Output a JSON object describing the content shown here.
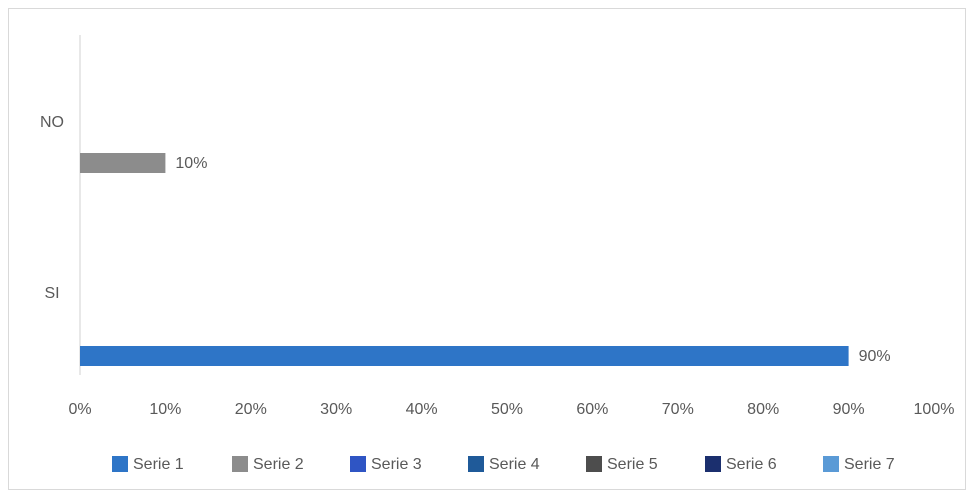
{
  "chart_data": {
    "type": "bar",
    "orientation": "horizontal",
    "title": "",
    "xlabel": "",
    "ylabel": "",
    "categories": [
      "SI",
      "NO"
    ],
    "series": [
      {
        "name": "Serie 1",
        "color": "#2e75c7",
        "values": [
          90,
          null
        ]
      },
      {
        "name": "Serie 2",
        "color": "#8c8c8c",
        "values": [
          null,
          10
        ]
      },
      {
        "name": "Serie 3",
        "color": "#2f55c4",
        "values": [
          null,
          null
        ]
      },
      {
        "name": "Serie 4",
        "color": "#1f5a99",
        "values": [
          null,
          null
        ]
      },
      {
        "name": "Serie 5",
        "color": "#4d4d4d",
        "values": [
          null,
          null
        ]
      },
      {
        "name": "Serie 6",
        "color": "#1b2f6e",
        "values": [
          null,
          null
        ]
      },
      {
        "name": "Serie 7",
        "color": "#5a9ad6",
        "values": [
          null,
          null
        ]
      }
    ],
    "data_labels": [
      {
        "series": "Serie 1",
        "category": "SI",
        "text": "90%"
      },
      {
        "series": "Serie 2",
        "category": "NO",
        "text": "10%"
      }
    ],
    "xlim": [
      0,
      100
    ],
    "xticks": [
      0,
      10,
      20,
      30,
      40,
      50,
      60,
      70,
      80,
      90,
      100
    ],
    "xtick_labels": [
      "0%",
      "10%",
      "20%",
      "30%",
      "40%",
      "50%",
      "60%",
      "70%",
      "80%",
      "90%",
      "100%"
    ],
    "grid": false,
    "legend_position": "bottom"
  }
}
